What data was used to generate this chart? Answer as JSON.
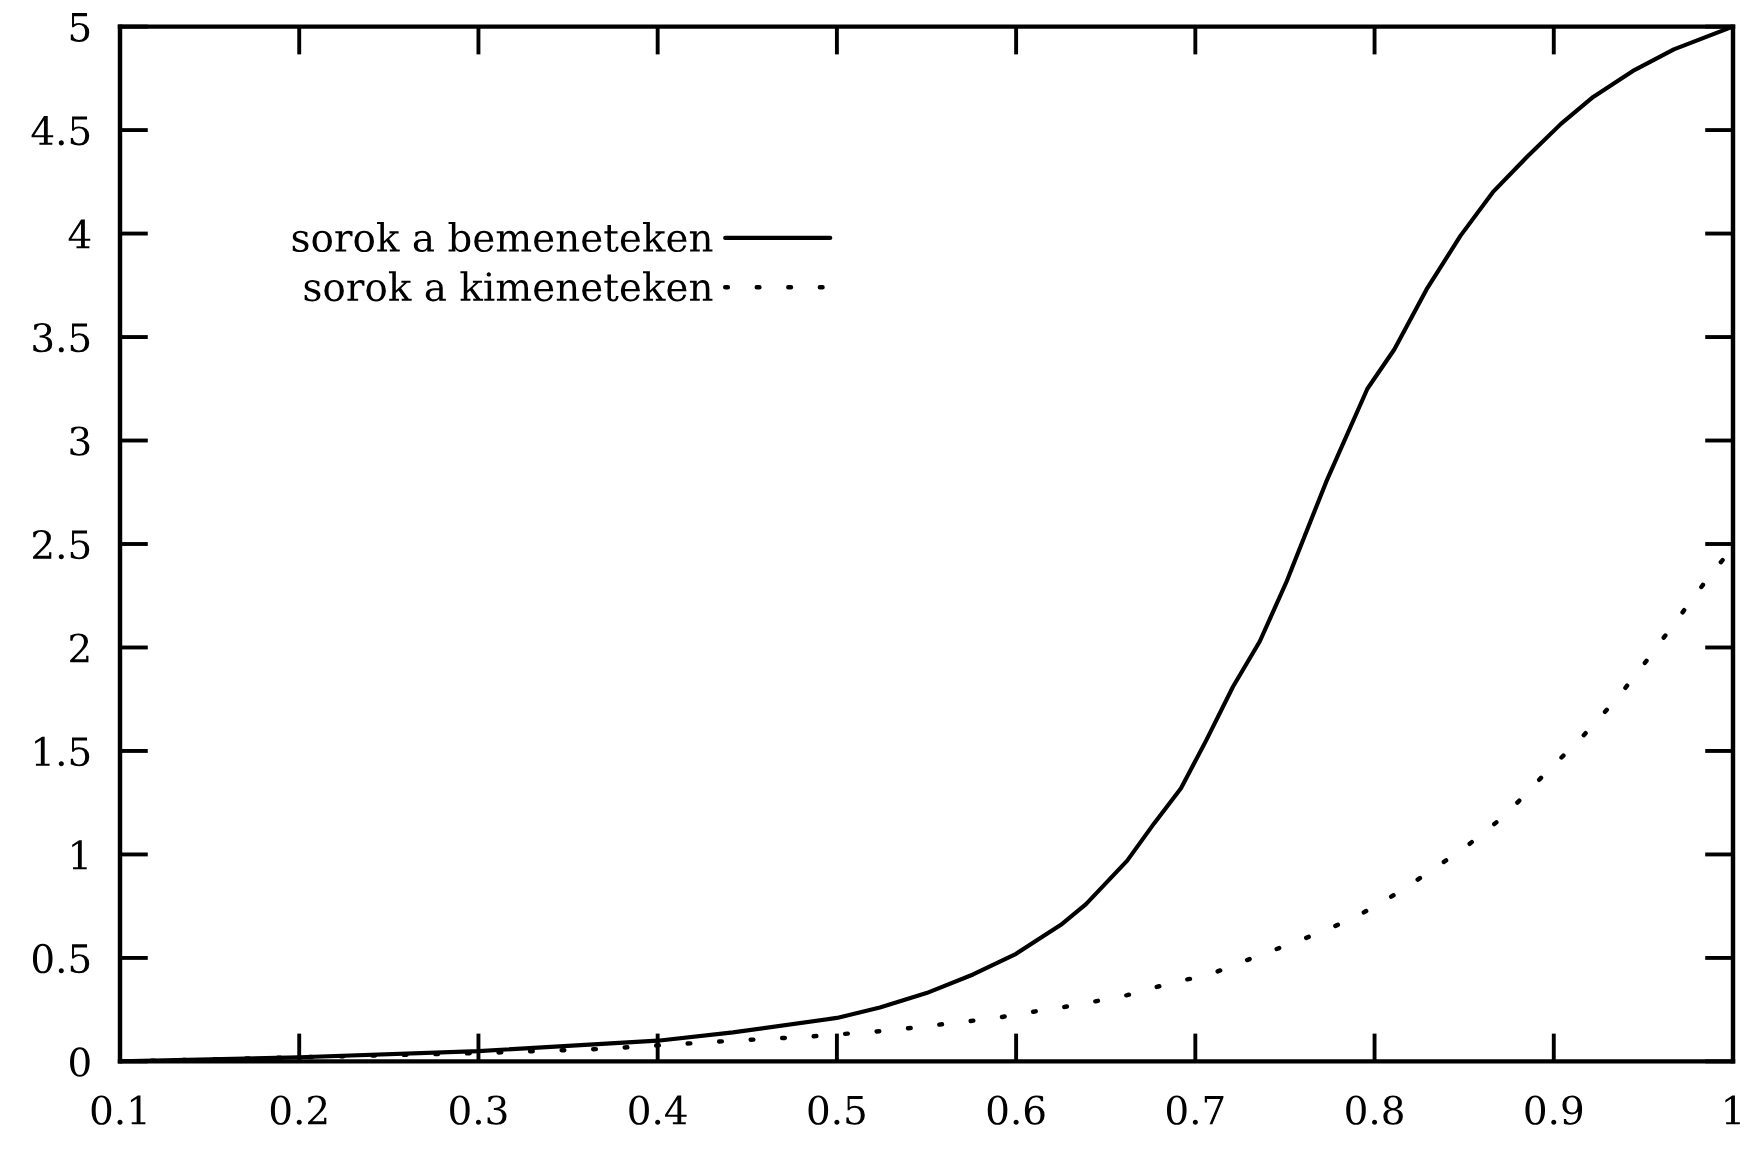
{
  "chart_data": {
    "type": "line",
    "xlim": [
      0.1,
      1
    ],
    "xticks": [
      0.1,
      0.2,
      0.3,
      0.4,
      0.5,
      0.6,
      0.7,
      0.8,
      0.9,
      1
    ],
    "ylim": [
      0,
      5
    ],
    "yticks": [
      0,
      0.5,
      1,
      1.5,
      2,
      2.5,
      3,
      3.5,
      4,
      4.5,
      5
    ],
    "grid": false,
    "legend": "top left",
    "series": [
      {
        "name": "sorok a bemeneteken",
        "color": "#000000",
        "line_style": "solid",
        "x": [
          0.1,
          0.2,
          0.3,
          0.4,
          0.442,
          0.5,
          0.524,
          0.55,
          0.576,
          0.6,
          0.625,
          0.639,
          0.662,
          0.677,
          0.692,
          0.706,
          0.721,
          0.736,
          0.751,
          0.773,
          0.796,
          0.811,
          0.829,
          0.848,
          0.866,
          0.885,
          0.904,
          0.922,
          0.945,
          0.967,
          1
        ],
        "values": [
          0,
          0.02,
          0.05,
          0.1,
          0.14,
          0.21,
          0.26,
          0.33,
          0.42,
          0.52,
          0.66,
          0.76,
          0.97,
          1.15,
          1.32,
          1.55,
          1.81,
          2.03,
          2.32,
          2.8,
          3.25,
          3.44,
          3.73,
          3.99,
          4.2,
          4.37,
          4.53,
          4.66,
          4.79,
          4.89,
          5
        ]
      },
      {
        "name": "sorok a kimeneteken",
        "color": "#000000",
        "line_style": "dotted",
        "x": [
          0.1,
          0.2,
          0.3,
          0.368,
          0.405,
          0.442,
          0.485,
          0.515,
          0.53,
          0.589,
          0.602,
          0.632,
          0.662,
          0.691,
          0.705,
          0.732,
          0.76,
          0.788,
          0.814,
          0.85,
          0.873,
          0.894,
          0.915,
          0.935,
          0.953,
          0.971,
          0.989,
          1
        ],
        "values": [
          0,
          0.02,
          0.04,
          0.06,
          0.08,
          0.1,
          0.12,
          0.14,
          0.15,
          0.21,
          0.23,
          0.27,
          0.32,
          0.39,
          0.41,
          0.5,
          0.59,
          0.69,
          0.82,
          1.03,
          1.19,
          1.38,
          1.56,
          1.75,
          1.95,
          2.16,
          2.37,
          2.48
        ]
      }
    ]
  }
}
